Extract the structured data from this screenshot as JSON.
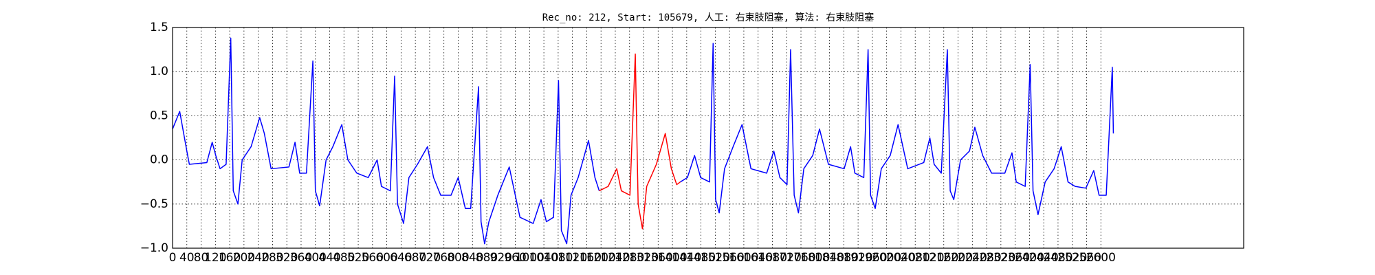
{
  "chart_data": {
    "type": "line",
    "title": "Rec_no: 212, Start: 105679, 人工: 右束肢阻塞, 算法: 右束肢阻塞",
    "x": [
      0,
      20,
      40,
      47,
      96,
      111,
      121,
      133,
      150,
      163,
      170,
      183,
      195,
      220,
      244,
      257,
      276,
      326,
      343,
      356,
      375,
      393,
      400,
      412,
      430,
      449,
      474,
      491,
      516,
      548,
      573,
      585,
      610,
      622,
      630,
      647,
      662,
      686,
      714,
      731,
      751,
      780,
      800,
      820,
      835,
      857,
      864,
      874,
      886,
      911,
      943,
      973,
      1010,
      1032,
      1047,
      1067,
      1081,
      1089,
      1104,
      1116,
      1136,
      1165,
      1183,
      1195,
      1220,
      1244,
      1257,
      1281,
      1296,
      1304,
      1316,
      1328,
      1355,
      1380,
      1397,
      1412,
      1422,
      1442,
      1462,
      1479,
      1504,
      1514,
      1521,
      1531,
      1546,
      1570,
      1595,
      1620,
      1664,
      1684,
      1701,
      1721,
      1731,
      1741,
      1753,
      1768,
      1793,
      1812,
      1837,
      1881,
      1899,
      1911,
      1936,
      1948,
      1955,
      1968,
      1985,
      2010,
      2032,
      2059,
      2104,
      2121,
      2133,
      2153,
      2170,
      2178,
      2188,
      2207,
      2232,
      2247,
      2269,
      2294,
      2331,
      2351,
      2363,
      2388,
      2402,
      2410,
      2424,
      2444,
      2469,
      2489,
      2508,
      2528,
      2558,
      2580,
      2595,
      2615,
      2632,
      2635
    ],
    "series": [
      {
        "color": "#0000ff",
        "values": [
          0.35,
          0.55,
          0.1,
          -0.05,
          -0.03,
          0.2,
          0.05,
          -0.1,
          -0.05,
          1.38,
          -0.35,
          -0.5,
          0.0,
          0.15,
          0.48,
          0.3,
          -0.1,
          -0.08,
          0.2,
          -0.15,
          -0.15,
          1.12,
          -0.35,
          -0.52,
          0.0,
          0.15,
          0.4,
          0.0,
          -0.15,
          -0.2,
          0.0,
          -0.3,
          -0.35,
          0.95,
          -0.5,
          -0.72,
          -0.2,
          -0.05,
          0.15,
          -0.2,
          -0.4,
          -0.4,
          -0.2,
          -0.55,
          -0.55,
          0.83,
          -0.7,
          -0.95,
          -0.7,
          -0.4,
          -0.08,
          -0.65,
          -0.72,
          -0.45,
          -0.7,
          -0.65,
          0.9,
          -0.8,
          -0.95,
          -0.4,
          -0.2,
          0.22,
          -0.2,
          -0.35,
          null,
          null,
          null,
          null,
          null,
          null,
          null,
          null,
          null,
          null,
          null,
          null,
          -0.25,
          -0.2,
          0.05,
          -0.2,
          -0.25,
          1.32,
          -0.45,
          -0.6,
          -0.1,
          0.15,
          0.4,
          -0.1,
          -0.15,
          0.1,
          -0.2,
          -0.28,
          1.25,
          -0.4,
          -0.6,
          -0.1,
          0.05,
          0.35,
          -0.05,
          -0.1,
          0.15,
          -0.15,
          -0.2,
          1.25,
          -0.4,
          -0.55,
          -0.1,
          0.05,
          0.4,
          -0.1,
          -0.03,
          0.25,
          -0.05,
          -0.15,
          1.25,
          -0.35,
          -0.45,
          0.0,
          0.1,
          0.37,
          0.05,
          -0.15,
          -0.15,
          0.08,
          -0.25,
          -0.3,
          1.08,
          -0.35,
          -0.62,
          -0.25,
          -0.1,
          0.15,
          -0.25,
          -0.3,
          -0.32,
          -0.12,
          -0.4,
          -0.4,
          1.05,
          0.3
        ]
      },
      {
        "color": "#ff0000",
        "values": [
          null,
          null,
          null,
          null,
          null,
          null,
          null,
          null,
          null,
          null,
          null,
          null,
          null,
          null,
          null,
          null,
          null,
          null,
          null,
          null,
          null,
          null,
          null,
          null,
          null,
          null,
          null,
          null,
          null,
          null,
          null,
          null,
          null,
          null,
          null,
          null,
          null,
          null,
          null,
          null,
          null,
          null,
          null,
          null,
          null,
          null,
          null,
          null,
          null,
          null,
          null,
          null,
          null,
          null,
          null,
          null,
          null,
          null,
          null,
          null,
          null,
          null,
          null,
          -0.35,
          -0.3,
          -0.1,
          -0.35,
          -0.4,
          1.2,
          -0.5,
          -0.78,
          -0.3,
          -0.05,
          0.3,
          -0.1,
          -0.28,
          -0.25,
          null,
          null,
          null,
          null,
          null,
          null,
          null,
          null,
          null,
          null,
          null,
          null,
          null,
          null,
          null,
          null,
          null,
          null,
          null,
          null,
          null,
          null,
          null,
          null,
          null,
          null,
          null,
          null,
          null,
          null,
          null,
          null,
          null,
          null,
          null,
          null,
          null,
          null,
          null,
          null,
          null,
          null,
          null,
          null,
          null,
          null,
          null,
          null,
          null,
          null,
          null,
          null,
          null,
          null,
          null,
          null,
          null,
          null,
          null,
          null,
          null,
          null,
          null
        ]
      }
    ],
    "xlim": [
      0,
      3000
    ],
    "xticks": [
      0,
      40,
      80,
      120,
      160,
      200,
      240,
      280,
      320,
      360,
      400,
      440,
      480,
      520,
      560,
      600,
      640,
      680,
      720,
      760,
      800,
      840,
      880,
      920,
      960,
      1000,
      1040,
      1080,
      1120,
      1160,
      1200,
      1240,
      1280,
      1320,
      1360,
      1400,
      1440,
      1480,
      1520,
      1560,
      1600,
      1640,
      1680,
      1720,
      1760,
      1800,
      1840,
      1880,
      1920,
      1960,
      2000,
      2040,
      2080,
      2120,
      2160,
      2200,
      2240,
      2280,
      2320,
      2360,
      2400,
      2440,
      2480,
      2520,
      2560,
      2600
    ],
    "ylim": [
      -1,
      1.5
    ],
    "yticks": [
      {
        "value": -1,
        "label": "−1.0"
      },
      {
        "value": -0.5,
        "label": "−0.5"
      },
      {
        "value": 0,
        "label": "0.0"
      },
      0.5,
      {
        "value": 1,
        "label": "1.0"
      },
      1.5
    ],
    "grid": true
  }
}
